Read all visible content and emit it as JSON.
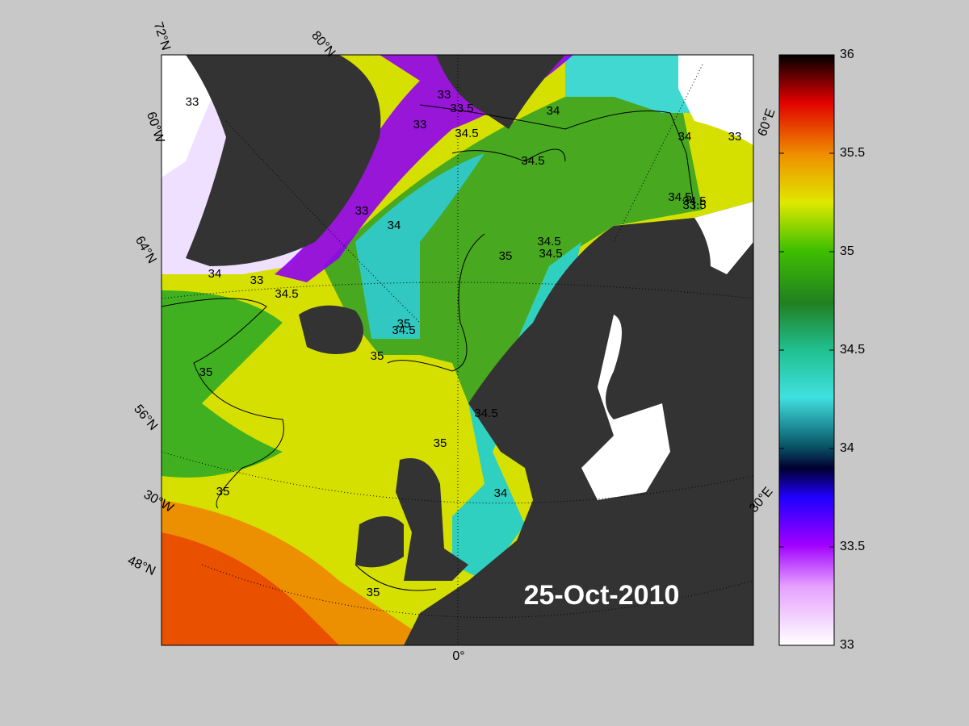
{
  "date": "25-Oct-2010",
  "colorbar": {
    "lim": [
      33,
      36
    ],
    "ticks": [
      33,
      33.5,
      34,
      34.5,
      35,
      35.5,
      36
    ]
  },
  "graticule_labels": [
    "72°N",
    "80°N",
    "60°W",
    "64°N",
    "56°N",
    "30°W",
    "48°N",
    "0°",
    "30°E",
    "60°E"
  ],
  "contour_labels": [
    "33",
    "33",
    "33.5",
    "33",
    "34",
    "34.5",
    "34.5",
    "34",
    "33",
    "33",
    "34",
    "34.5",
    "33.5",
    "34.5",
    "35",
    "34.5",
    "34",
    "33",
    "34.5",
    "34.5",
    "35",
    "34.5",
    "35",
    "35",
    "35",
    "34",
    "35",
    "34.5",
    "35"
  ]
}
